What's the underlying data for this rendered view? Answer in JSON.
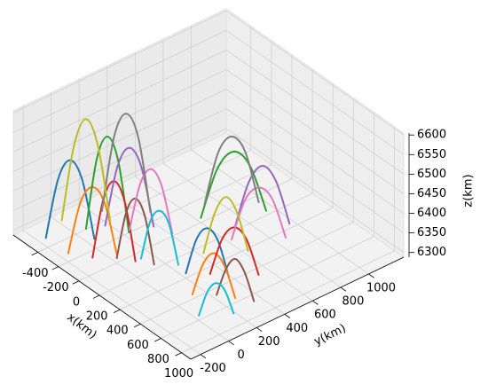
{
  "chart_data": {
    "type": "line3d",
    "xlabel": "x(km)",
    "ylabel": "y(km)",
    "zlabel": "z(km)",
    "xlim": [
      -640,
      1090
    ],
    "ylim": [
      -270,
      1250
    ],
    "zlim": [
      6288,
      6605
    ],
    "xticks": [
      -400,
      -200,
      0,
      200,
      400,
      600,
      800,
      1000
    ],
    "yticks": [
      -200,
      0,
      200,
      400,
      600,
      800,
      1000
    ],
    "zticks": [
      6300,
      6350,
      6400,
      6450,
      6500,
      6550,
      6600
    ],
    "grid": true,
    "series": [
      {
        "color": "#1f77b4",
        "x": [
          -350,
          -300,
          -250,
          -200,
          -150
        ],
        "y": [
          -250,
          -200,
          -150,
          -100,
          -50
        ],
        "z": [
          6330,
          6480,
          6530,
          6480,
          6330
        ]
      },
      {
        "color": "#ff7f0e",
        "x": [
          -200,
          -150,
          -100,
          -50,
          0
        ],
        "y": [
          -200,
          -150,
          -100,
          -50,
          0
        ],
        "z": [
          6310,
          6440,
          6480,
          6440,
          6310
        ]
      },
      {
        "color": "#2ca02c",
        "x": [
          -300,
          -250,
          -200,
          -150,
          -100
        ],
        "y": [
          0,
          40,
          80,
          120,
          160
        ],
        "z": [
          6320,
          6500,
          6560,
          6500,
          6320
        ]
      },
      {
        "color": "#d62728",
        "x": [
          -100,
          -50,
          0,
          50,
          100
        ],
        "y": [
          -100,
          -60,
          -20,
          20,
          60
        ],
        "z": [
          6300,
          6450,
          6500,
          6450,
          6300
        ]
      },
      {
        "color": "#9467bd",
        "x": [
          -250,
          -200,
          -150,
          -100,
          -50
        ],
        "y": [
          100,
          150,
          200,
          250,
          300
        ],
        "z": [
          6320,
          6470,
          6520,
          6470,
          6320
        ]
      },
      {
        "color": "#8c564b",
        "x": [
          0,
          50,
          100,
          150,
          200
        ],
        "y": [
          0,
          30,
          60,
          90,
          120
        ],
        "z": [
          6300,
          6420,
          6460,
          6420,
          6300
        ]
      },
      {
        "color": "#e377c2",
        "x": [
          -150,
          -100,
          -50,
          0,
          50
        ],
        "y": [
          200,
          240,
          280,
          320,
          360
        ],
        "z": [
          6310,
          6430,
          6470,
          6430,
          6310
        ]
      },
      {
        "color": "#7f7f7f",
        "x": [
          -350,
          -300,
          -250,
          -200,
          -150
        ],
        "y": [
          150,
          200,
          250,
          300,
          350
        ],
        "z": [
          6330,
          6520,
          6580,
          6520,
          6330
        ]
      },
      {
        "color": "#bcbd22",
        "x": [
          -400,
          -350,
          -300,
          -250,
          -200
        ],
        "y": [
          -100,
          -50,
          0,
          50,
          100
        ],
        "z": [
          6340,
          6530,
          6600,
          6530,
          6340
        ]
      },
      {
        "color": "#17becf",
        "x": [
          100,
          150,
          200,
          250,
          300
        ],
        "y": [
          100,
          130,
          160,
          190,
          220
        ],
        "z": [
          6300,
          6400,
          6430,
          6400,
          6300
        ]
      },
      {
        "color": "#1f77b4",
        "x": [
          400,
          450,
          500,
          550,
          600
        ],
        "y": [
          200,
          240,
          280,
          320,
          360
        ],
        "z": [
          6300,
          6390,
          6420,
          6390,
          6300
        ]
      },
      {
        "color": "#ff7f0e",
        "x": [
          600,
          650,
          700,
          750,
          800
        ],
        "y": [
          100,
          140,
          180,
          220,
          260
        ],
        "z": [
          6300,
          6380,
          6410,
          6380,
          6300
        ]
      },
      {
        "color": "#2ca02c",
        "x": [
          0,
          50,
          100,
          150,
          200
        ],
        "y": [
          600,
          680,
          760,
          840,
          920
        ],
        "z": [
          6300,
          6420,
          6460,
          6420,
          6300
        ]
      },
      {
        "color": "#d62728",
        "x": [
          500,
          550,
          600,
          650,
          700
        ],
        "y": [
          300,
          350,
          400,
          450,
          500
        ],
        "z": [
          6300,
          6390,
          6420,
          6390,
          6300
        ]
      },
      {
        "color": "#9467bd",
        "x": [
          200,
          250,
          300,
          350,
          400
        ],
        "y": [
          700,
          760,
          820,
          880,
          940
        ],
        "z": [
          6300,
          6410,
          6450,
          6410,
          6300
        ]
      },
      {
        "color": "#8c564b",
        "x": [
          700,
          750,
          800,
          850,
          900
        ],
        "y": [
          200,
          230,
          260,
          290,
          320
        ],
        "z": [
          6300,
          6370,
          6400,
          6370,
          6300
        ]
      },
      {
        "color": "#e377c2",
        "x": [
          300,
          350,
          400,
          450,
          500
        ],
        "y": [
          600,
          660,
          720,
          780,
          840
        ],
        "z": [
          6300,
          6400,
          6430,
          6400,
          6300
        ]
      },
      {
        "color": "#7f7f7f",
        "x": [
          -100,
          -50,
          0,
          50,
          100
        ],
        "y": [
          700,
          760,
          820,
          880,
          940
        ],
        "z": [
          6300,
          6430,
          6470,
          6430,
          6300
        ]
      },
      {
        "color": "#bcbd22",
        "x": [
          300,
          340,
          380,
          420,
          460
        ],
        "y": [
          400,
          450,
          500,
          550,
          600
        ],
        "z": [
          6300,
          6400,
          6440,
          6400,
          6300
        ]
      },
      {
        "color": "#17becf",
        "x": [
          800,
          830,
          860,
          890,
          920
        ],
        "y": [
          0,
          40,
          80,
          120,
          160
        ],
        "z": [
          6300,
          6360,
          6380,
          6360,
          6300
        ]
      }
    ]
  }
}
